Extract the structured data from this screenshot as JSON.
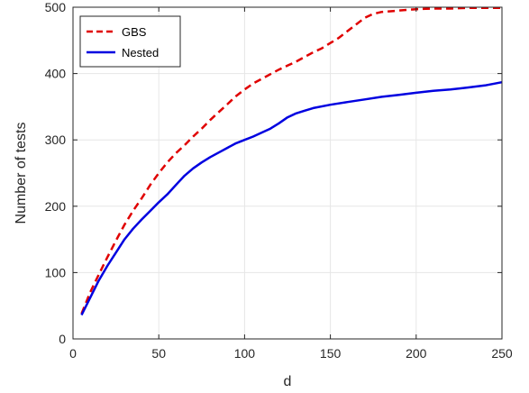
{
  "chart_data": {
    "type": "line",
    "title": "",
    "xlabel": "d",
    "ylabel": "Number of tests",
    "xlim": [
      0,
      250
    ],
    "ylim": [
      0,
      500
    ],
    "xticks": [
      0,
      50,
      100,
      150,
      200,
      250
    ],
    "yticks": [
      0,
      100,
      200,
      300,
      400,
      500
    ],
    "grid": true,
    "legend_position": "top-left",
    "series": [
      {
        "name": "GBS",
        "color": "#e00000",
        "style": "dashed",
        "x": [
          5,
          10,
          15,
          20,
          25,
          30,
          35,
          40,
          45,
          50,
          55,
          60,
          65,
          70,
          75,
          80,
          85,
          90,
          95,
          100,
          105,
          110,
          115,
          120,
          125,
          130,
          135,
          140,
          145,
          150,
          155,
          160,
          165,
          170,
          175,
          180,
          190,
          200,
          210,
          220,
          230,
          240,
          250
        ],
        "y": [
          38,
          70,
          97,
          123,
          148,
          172,
          193,
          212,
          232,
          250,
          266,
          280,
          292,
          305,
          317,
          330,
          342,
          354,
          366,
          376,
          385,
          392,
          399,
          406,
          412,
          418,
          425,
          432,
          438,
          446,
          454,
          464,
          474,
          484,
          490,
          493,
          495,
          497,
          498,
          498,
          499,
          499,
          499
        ]
      },
      {
        "name": "Nested",
        "color": "#0000e0",
        "style": "solid",
        "x": [
          5,
          10,
          15,
          20,
          25,
          30,
          35,
          40,
          45,
          50,
          55,
          60,
          65,
          70,
          75,
          80,
          85,
          90,
          95,
          100,
          105,
          110,
          115,
          120,
          125,
          130,
          135,
          140,
          150,
          160,
          170,
          180,
          190,
          200,
          210,
          220,
          230,
          240,
          250
        ],
        "y": [
          36,
          62,
          88,
          110,
          130,
          150,
          166,
          180,
          193,
          206,
          218,
          232,
          246,
          257,
          266,
          274,
          281,
          288,
          295,
          300,
          305,
          311,
          317,
          325,
          334,
          340,
          344,
          348,
          353,
          357,
          361,
          365,
          368,
          371,
          374,
          376,
          379,
          382,
          387
        ]
      }
    ]
  }
}
